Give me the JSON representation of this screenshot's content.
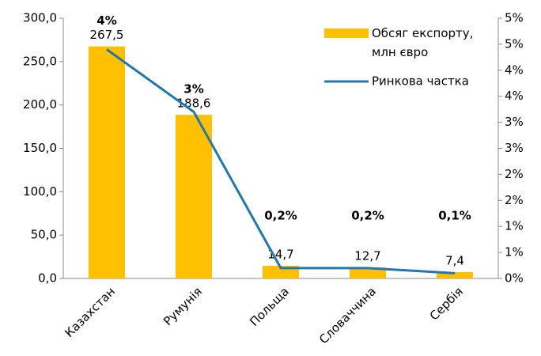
{
  "chart_data": {
    "type": "bar_line",
    "categories": [
      "Казахстан",
      "Румунія",
      "Польща",
      "Словаччина",
      "Сербія"
    ],
    "series": [
      {
        "name": "Обсяг експорту, млн євро",
        "color": "#ffc000",
        "type": "bar",
        "values": [
          267.5,
          188.6,
          14.7,
          12.7,
          7.4
        ],
        "value_labels": [
          "267,5",
          "188,6",
          "14,7",
          "12,7",
          "7,4"
        ]
      },
      {
        "name": "Ринкова частка",
        "color": "#1f77b4",
        "type": "line",
        "axis": "y2",
        "values": [
          4.4,
          3.2,
          0.2,
          0.2,
          0.1
        ],
        "value_labels": [
          "4%",
          "3%",
          "0,2%",
          "0,2%",
          "0,1%"
        ]
      }
    ],
    "ylim": [
      0,
      300
    ],
    "yticks": [
      {
        "value": 0,
        "label": "0,0"
      },
      {
        "value": 50,
        "label": "50,0"
      },
      {
        "value": 100,
        "label": "100,0"
      },
      {
        "value": 150,
        "label": "150,0"
      },
      {
        "value": 200,
        "label": "200,0"
      },
      {
        "value": 250,
        "label": "250,0"
      },
      {
        "value": 300,
        "label": "300,0"
      }
    ],
    "y2lim": [
      0,
      5
    ],
    "y2ticks": [
      {
        "value": 0,
        "label": "0%"
      },
      {
        "value": 0.5,
        "label": "1%"
      },
      {
        "value": 1,
        "label": "1%"
      },
      {
        "value": 1.5,
        "label": "2%"
      },
      {
        "value": 2,
        "label": "2%"
      },
      {
        "value": 2.5,
        "label": "3%"
      },
      {
        "value": 3,
        "label": "3%"
      },
      {
        "value": 3.5,
        "label": "4%"
      },
      {
        "value": 4,
        "label": "4%"
      },
      {
        "value": 4.5,
        "label": "5%"
      },
      {
        "value": 5,
        "label": "5%"
      }
    ]
  }
}
